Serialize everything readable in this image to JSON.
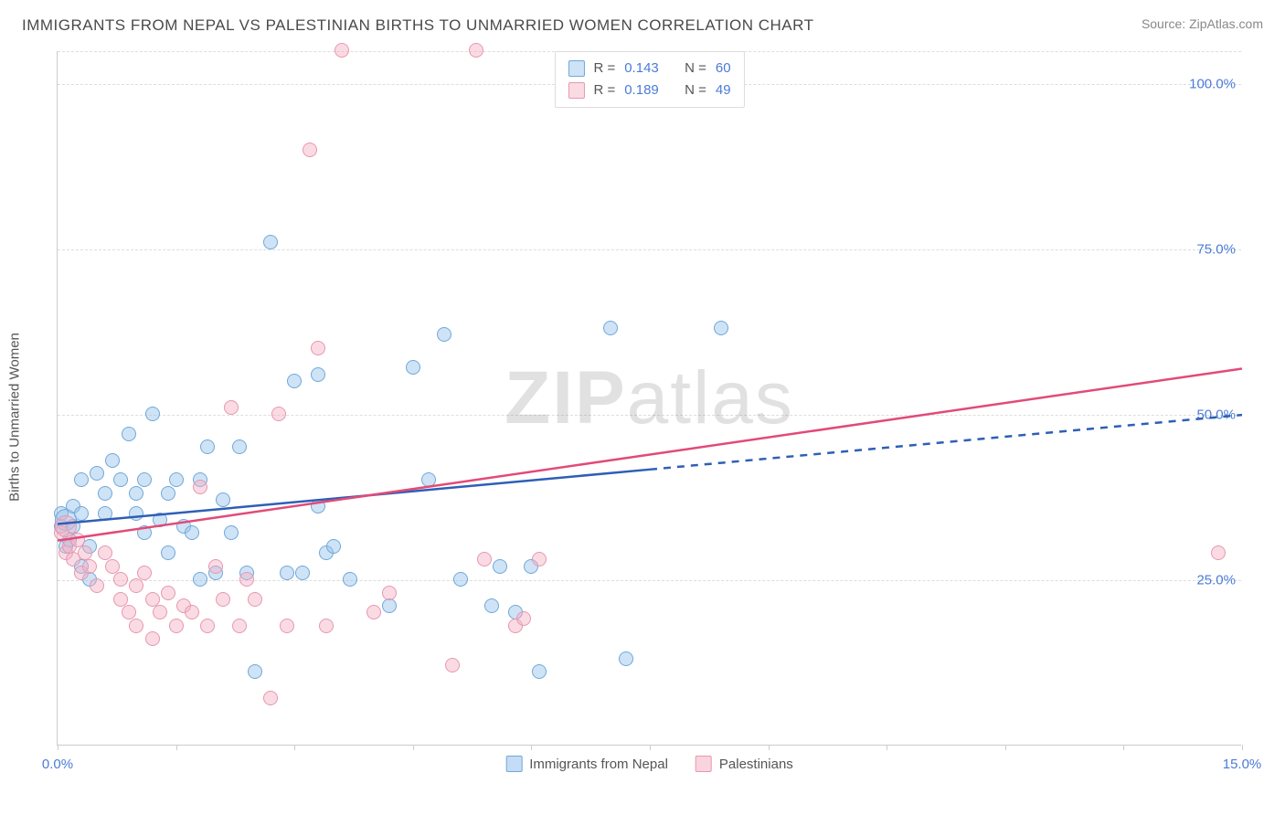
{
  "title": "IMMIGRANTS FROM NEPAL VS PALESTINIAN BIRTHS TO UNMARRIED WOMEN CORRELATION CHART",
  "source": "Source: ZipAtlas.com",
  "y_axis_label": "Births to Unmarried Women",
  "watermark_bold": "ZIP",
  "watermark_light": "atlas",
  "chart": {
    "type": "scatter",
    "xlim": [
      0,
      15
    ],
    "ylim": [
      0,
      105
    ],
    "x_ticks": [
      0,
      1.5,
      3.0,
      4.5,
      6.0,
      7.5,
      9.0,
      10.5,
      12.0,
      13.5,
      15.0
    ],
    "x_tick_labels": {
      "0": "0.0%",
      "15": "15.0%"
    },
    "y_gridlines": [
      25,
      50,
      75,
      100,
      105
    ],
    "y_tick_labels": {
      "25": "25.0%",
      "50": "50.0%",
      "75": "75.0%",
      "100": "100.0%"
    },
    "background_color": "#ffffff",
    "grid_color": "#dddddd",
    "axis_color": "#cccccc",
    "tick_label_color": "#4a7bd8",
    "marker_size": 16,
    "marker_size_large": 24,
    "series": [
      {
        "name": "Immigrants from Nepal",
        "color_fill": "rgba(148,192,236,0.45)",
        "color_stroke": "#6fa8d8",
        "R": "0.143",
        "N": "60",
        "trend": {
          "x1": 0,
          "y1": 33.5,
          "x2": 15,
          "y2": 50,
          "solid_until_x": 7.5,
          "color": "#2e5fb5",
          "width": 2.5
        },
        "points": [
          {
            "x": 0.05,
            "y": 33
          },
          {
            "x": 0.05,
            "y": 35
          },
          {
            "x": 0.1,
            "y": 34,
            "size": 24
          },
          {
            "x": 0.1,
            "y": 30
          },
          {
            "x": 0.15,
            "y": 31
          },
          {
            "x": 0.2,
            "y": 36
          },
          {
            "x": 0.2,
            "y": 33
          },
          {
            "x": 0.3,
            "y": 35
          },
          {
            "x": 0.3,
            "y": 40
          },
          {
            "x": 0.4,
            "y": 30
          },
          {
            "x": 0.5,
            "y": 41
          },
          {
            "x": 0.6,
            "y": 35
          },
          {
            "x": 0.6,
            "y": 38
          },
          {
            "x": 0.7,
            "y": 43
          },
          {
            "x": 0.8,
            "y": 40
          },
          {
            "x": 0.9,
            "y": 47
          },
          {
            "x": 1.0,
            "y": 38
          },
          {
            "x": 1.0,
            "y": 35
          },
          {
            "x": 1.1,
            "y": 32
          },
          {
            "x": 1.1,
            "y": 40
          },
          {
            "x": 1.2,
            "y": 50
          },
          {
            "x": 1.3,
            "y": 34
          },
          {
            "x": 1.4,
            "y": 38
          },
          {
            "x": 1.4,
            "y": 29
          },
          {
            "x": 1.5,
            "y": 40
          },
          {
            "x": 1.6,
            "y": 33
          },
          {
            "x": 1.7,
            "y": 32
          },
          {
            "x": 1.8,
            "y": 25
          },
          {
            "x": 1.8,
            "y": 40
          },
          {
            "x": 1.9,
            "y": 45
          },
          {
            "x": 2.0,
            "y": 26
          },
          {
            "x": 2.1,
            "y": 37
          },
          {
            "x": 2.2,
            "y": 32
          },
          {
            "x": 2.3,
            "y": 45
          },
          {
            "x": 2.4,
            "y": 26
          },
          {
            "x": 2.5,
            "y": 11
          },
          {
            "x": 2.7,
            "y": 76
          },
          {
            "x": 2.9,
            "y": 26
          },
          {
            "x": 3.0,
            "y": 55
          },
          {
            "x": 3.1,
            "y": 26
          },
          {
            "x": 3.3,
            "y": 56
          },
          {
            "x": 3.3,
            "y": 36
          },
          {
            "x": 3.4,
            "y": 29
          },
          {
            "x": 3.5,
            "y": 30
          },
          {
            "x": 3.7,
            "y": 25
          },
          {
            "x": 4.2,
            "y": 21
          },
          {
            "x": 4.5,
            "y": 57
          },
          {
            "x": 4.7,
            "y": 40
          },
          {
            "x": 4.9,
            "y": 62
          },
          {
            "x": 5.1,
            "y": 25
          },
          {
            "x": 5.5,
            "y": 21
          },
          {
            "x": 5.6,
            "y": 27
          },
          {
            "x": 5.8,
            "y": 20
          },
          {
            "x": 6.0,
            "y": 27
          },
          {
            "x": 6.1,
            "y": 11
          },
          {
            "x": 7.0,
            "y": 63
          },
          {
            "x": 7.2,
            "y": 13
          },
          {
            "x": 8.4,
            "y": 63
          },
          {
            "x": 0.3,
            "y": 27
          },
          {
            "x": 0.4,
            "y": 25
          }
        ]
      },
      {
        "name": "Palestinians",
        "color_fill": "rgba(244,176,196,0.45)",
        "color_stroke": "#e797b0",
        "R": "0.189",
        "N": "49",
        "trend": {
          "x1": 0,
          "y1": 31,
          "x2": 15,
          "y2": 57,
          "solid_until_x": 15,
          "color": "#e24a78",
          "width": 2.5
        },
        "points": [
          {
            "x": 0.05,
            "y": 32
          },
          {
            "x": 0.1,
            "y": 33,
            "size": 24
          },
          {
            "x": 0.1,
            "y": 29
          },
          {
            "x": 0.15,
            "y": 30
          },
          {
            "x": 0.2,
            "y": 28
          },
          {
            "x": 0.25,
            "y": 31
          },
          {
            "x": 0.3,
            "y": 26
          },
          {
            "x": 0.35,
            "y": 29
          },
          {
            "x": 0.4,
            "y": 27
          },
          {
            "x": 0.5,
            "y": 24
          },
          {
            "x": 0.6,
            "y": 29
          },
          {
            "x": 0.7,
            "y": 27
          },
          {
            "x": 0.8,
            "y": 25
          },
          {
            "x": 0.8,
            "y": 22
          },
          {
            "x": 0.9,
            "y": 20
          },
          {
            "x": 1.0,
            "y": 24
          },
          {
            "x": 1.0,
            "y": 18
          },
          {
            "x": 1.1,
            "y": 26
          },
          {
            "x": 1.2,
            "y": 22
          },
          {
            "x": 1.2,
            "y": 16
          },
          {
            "x": 1.3,
            "y": 20
          },
          {
            "x": 1.4,
            "y": 23
          },
          {
            "x": 1.5,
            "y": 18
          },
          {
            "x": 1.6,
            "y": 21
          },
          {
            "x": 1.7,
            "y": 20
          },
          {
            "x": 1.8,
            "y": 39
          },
          {
            "x": 1.9,
            "y": 18
          },
          {
            "x": 2.0,
            "y": 27
          },
          {
            "x": 2.1,
            "y": 22
          },
          {
            "x": 2.2,
            "y": 51
          },
          {
            "x": 2.3,
            "y": 18
          },
          {
            "x": 2.4,
            "y": 25
          },
          {
            "x": 2.5,
            "y": 22
          },
          {
            "x": 2.7,
            "y": 7
          },
          {
            "x": 2.8,
            "y": 50
          },
          {
            "x": 2.9,
            "y": 18
          },
          {
            "x": 3.2,
            "y": 90
          },
          {
            "x": 3.3,
            "y": 60
          },
          {
            "x": 3.4,
            "y": 18
          },
          {
            "x": 3.6,
            "y": 105
          },
          {
            "x": 4.0,
            "y": 20
          },
          {
            "x": 4.2,
            "y": 23
          },
          {
            "x": 5.0,
            "y": 12
          },
          {
            "x": 5.3,
            "y": 105
          },
          {
            "x": 5.4,
            "y": 28
          },
          {
            "x": 5.8,
            "y": 18
          },
          {
            "x": 5.9,
            "y": 19
          },
          {
            "x": 6.1,
            "y": 28
          },
          {
            "x": 14.7,
            "y": 29
          }
        ]
      }
    ]
  },
  "legend_top_labels": {
    "R": "R =",
    "N": "N ="
  },
  "legend_bottom": [
    {
      "label": "Immigrants from Nepal",
      "fill": "rgba(148,192,236,0.55)",
      "stroke": "#6fa8d8"
    },
    {
      "label": "Palestinians",
      "fill": "rgba(244,176,196,0.55)",
      "stroke": "#e797b0"
    }
  ]
}
